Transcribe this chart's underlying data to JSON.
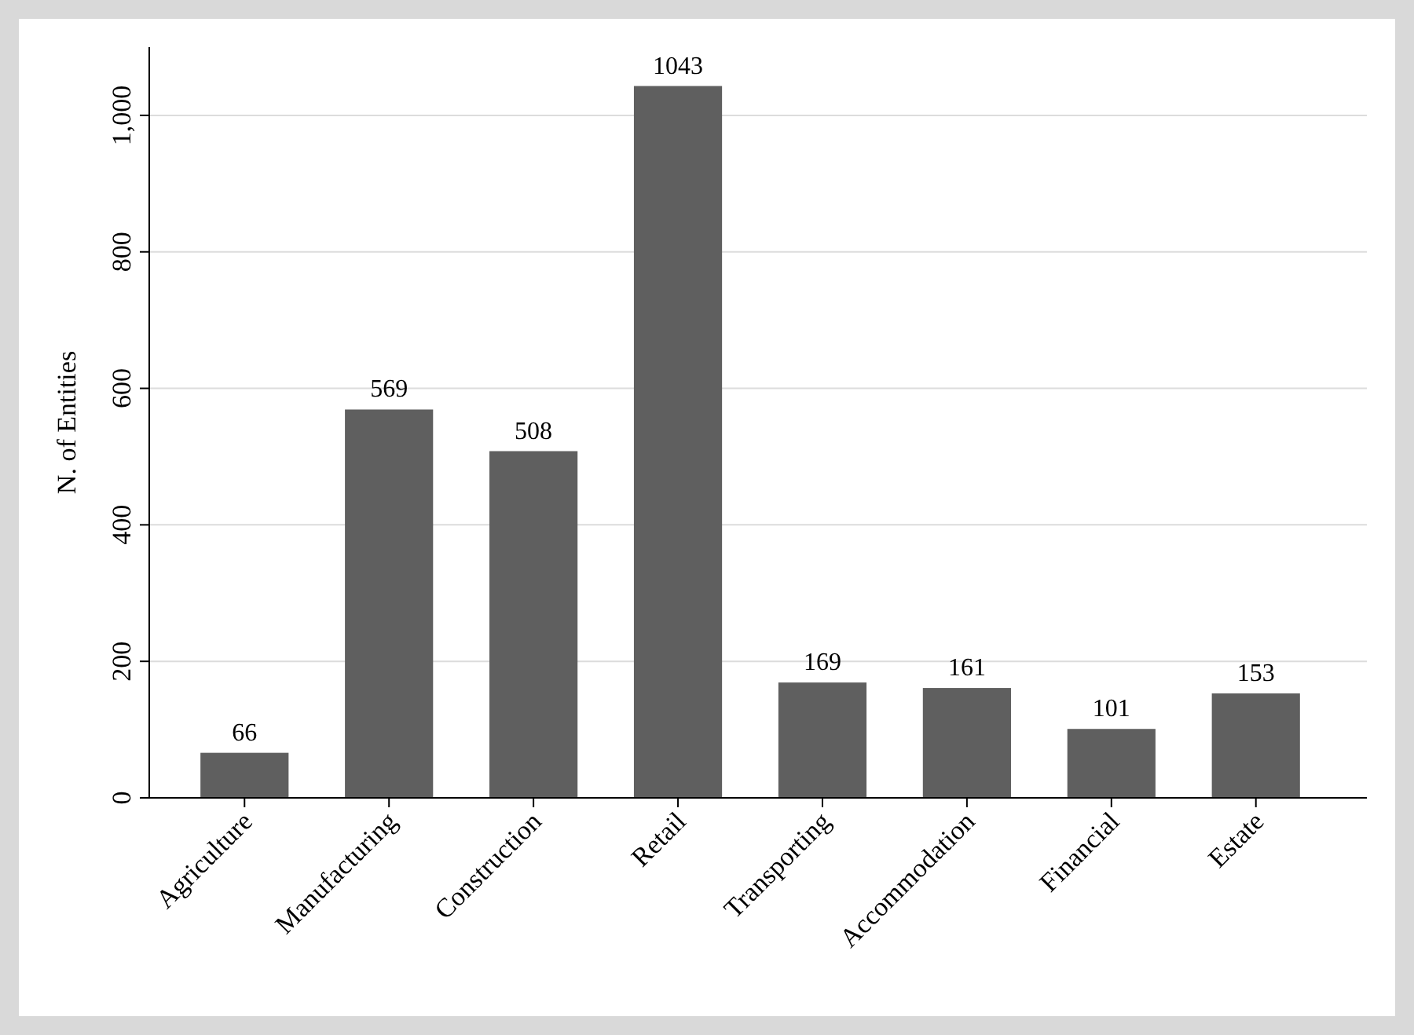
{
  "chart_data": {
    "type": "bar",
    "ylabel": "N. of Entities",
    "categories": [
      "Agriculture",
      "Manufacturing",
      "Construction",
      "Retail",
      "Transporting",
      "Accommodation",
      "Financial",
      "Estate"
    ],
    "values": [
      66,
      569,
      508,
      1043,
      169,
      161,
      101,
      153
    ],
    "color": "#5f5f5f",
    "ylim": [
      0,
      1100
    ],
    "yticks": [
      0,
      200,
      400,
      600,
      800,
      {
        "value": 1000,
        "label": "1,000"
      }
    ],
    "grid": "y",
    "data_labels": true
  }
}
